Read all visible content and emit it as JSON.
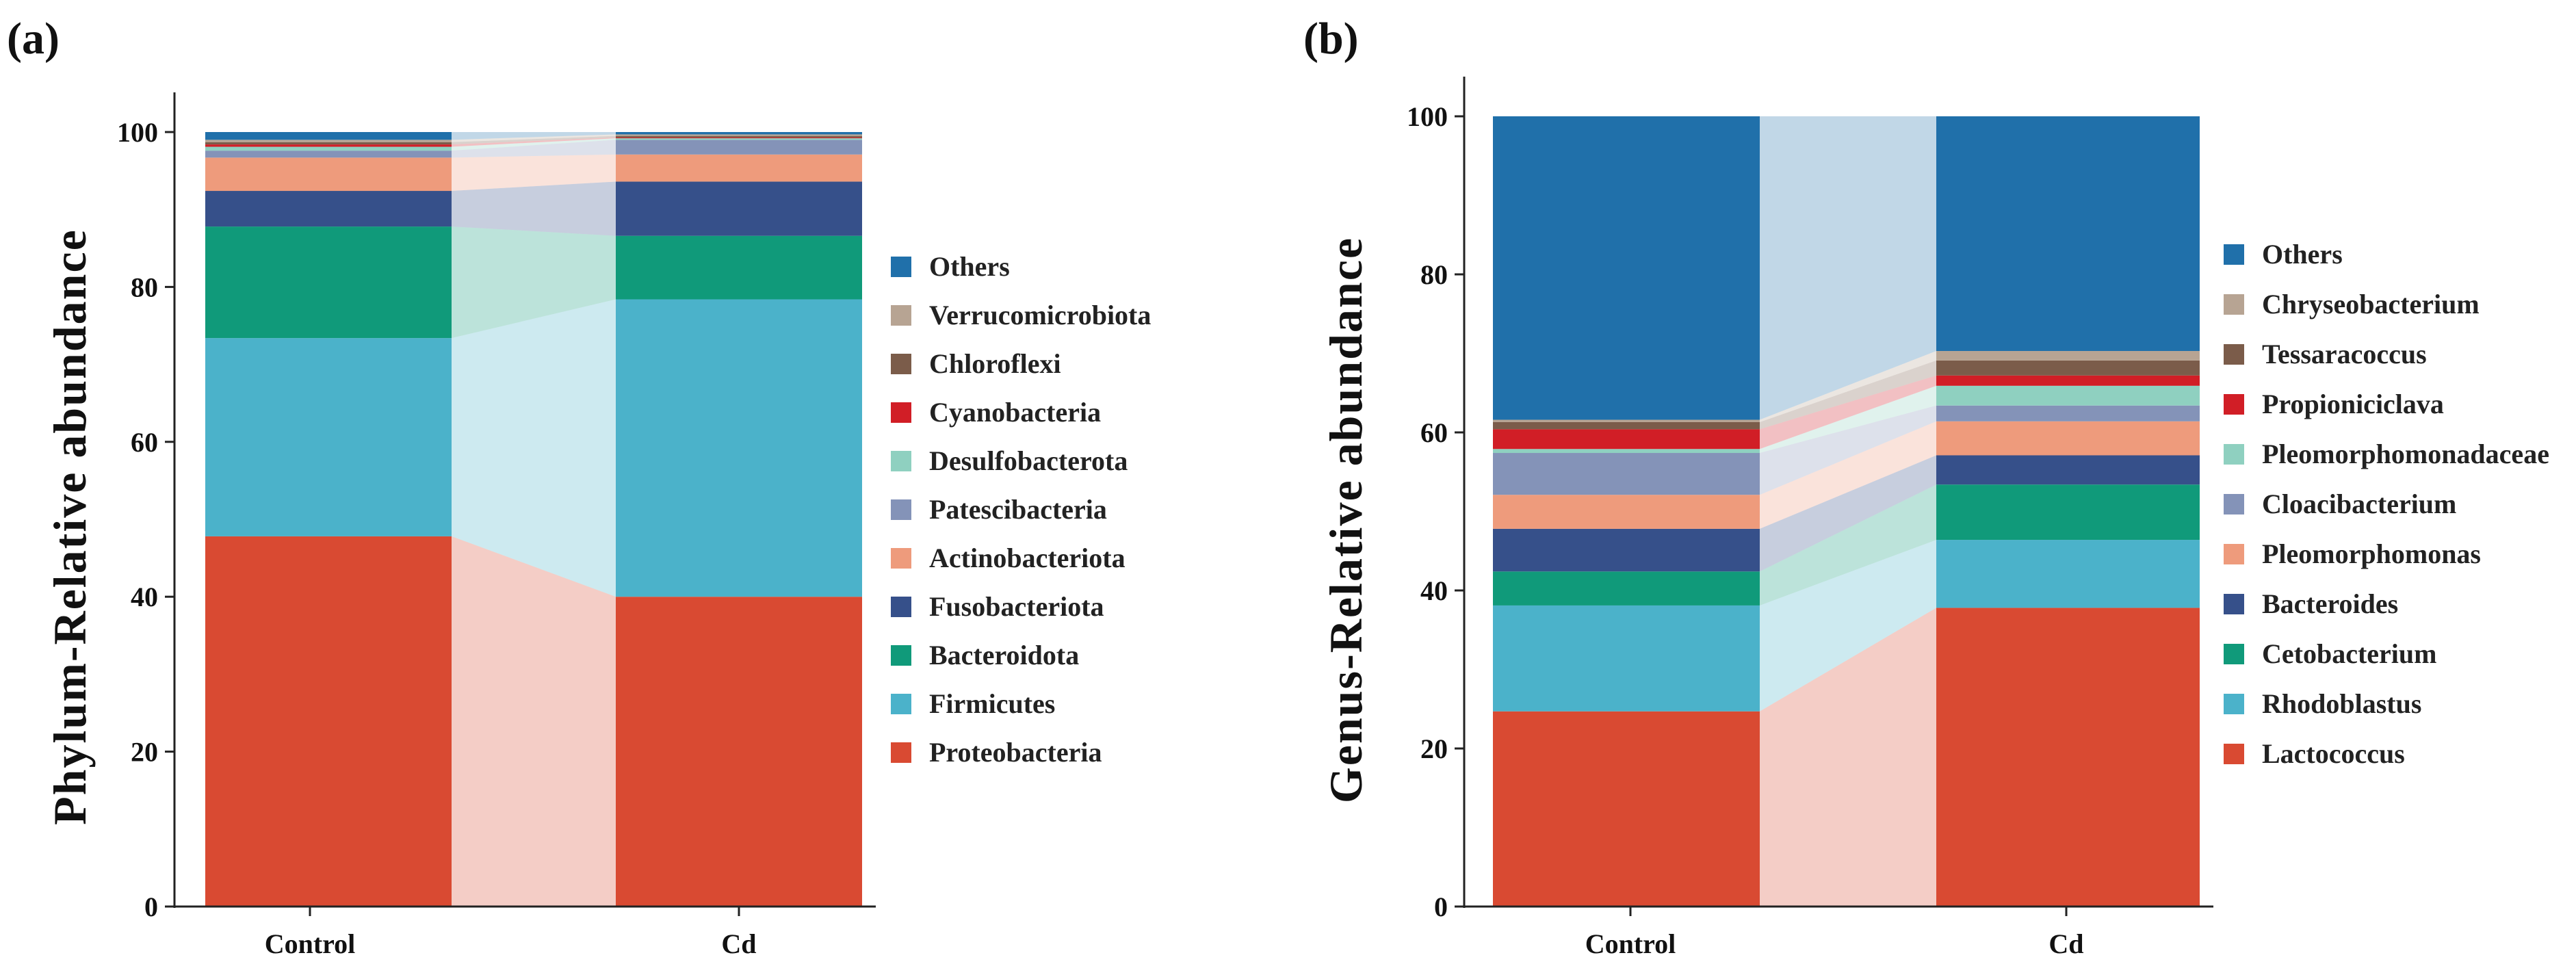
{
  "chart_data": [
    {
      "type": "stacked-bar",
      "panel_label": "(a)",
      "ylabel": "Phylum-Relative abundance",
      "xlabel": "",
      "ylim": [
        0,
        100
      ],
      "yticks": [
        0,
        20,
        40,
        60,
        80,
        100
      ],
      "categories": [
        "Control",
        "Cd"
      ],
      "legend_position": "right",
      "series": [
        {
          "name": "Proteobacteria",
          "color": "#D94A32",
          "values": [
            47.8,
            40.0
          ]
        },
        {
          "name": "Firmicutes",
          "color": "#4BB2CA",
          "values": [
            25.6,
            38.4
          ]
        },
        {
          "name": "Bacteroidota",
          "color": "#109A7A",
          "values": [
            14.4,
            8.2
          ]
        },
        {
          "name": "Fusobacteriota",
          "color": "#36508A",
          "values": [
            4.6,
            7.0
          ]
        },
        {
          "name": "Actinobacteriota",
          "color": "#EE9B7C",
          "values": [
            4.3,
            3.5
          ]
        },
        {
          "name": "Patescibacteria",
          "color": "#8493B8",
          "values": [
            0.9,
            1.9
          ]
        },
        {
          "name": "Desulfobacterota",
          "color": "#8FD0C0",
          "values": [
            0.5,
            0.2
          ]
        },
        {
          "name": "Cyanobacteria",
          "color": "#D11E26",
          "values": [
            0.3,
            0.1
          ]
        },
        {
          "name": "Chloroflexi",
          "color": "#7B5C4A",
          "values": [
            0.3,
            0.2
          ]
        },
        {
          "name": "Verrucomicrobiota",
          "color": "#B7A493",
          "values": [
            0.3,
            0.2
          ]
        },
        {
          "name": "Others",
          "color": "#2070AA",
          "values": [
            1.0,
            0.3
          ]
        }
      ]
    },
    {
      "type": "stacked-bar",
      "panel_label": "(b)",
      "ylabel": "Genus-Relative abundance",
      "xlabel": "",
      "ylim": [
        0,
        100
      ],
      "yticks": [
        0,
        20,
        40,
        60,
        80,
        100
      ],
      "categories": [
        "Control",
        "Cd"
      ],
      "legend_position": "right",
      "series": [
        {
          "name": "Lactococcus",
          "color": "#D94A32",
          "values": [
            24.7,
            37.8
          ]
        },
        {
          "name": "Rhodoblastus",
          "color": "#4BB2CA",
          "values": [
            13.4,
            8.6
          ]
        },
        {
          "name": "Cetobacterium",
          "color": "#109A7A",
          "values": [
            4.3,
            7.0
          ]
        },
        {
          "name": "Bacteroides",
          "color": "#36508A",
          "values": [
            5.4,
            3.7
          ]
        },
        {
          "name": "Pleomorphomonas",
          "color": "#EE9B7C",
          "values": [
            4.3,
            4.3
          ]
        },
        {
          "name": "Cloacibacterium",
          "color": "#8493B8",
          "values": [
            5.3,
            2.0
          ]
        },
        {
          "name": "Pleomorphomonadaceae",
          "color": "#8FD0C0",
          "values": [
            0.5,
            2.5
          ]
        },
        {
          "name": "Propioniciclava",
          "color": "#D11E26",
          "values": [
            2.5,
            1.3
          ]
        },
        {
          "name": "Tessaracoccus",
          "color": "#7B5C4A",
          "values": [
            0.9,
            1.9
          ]
        },
        {
          "name": "Chryseobacterium",
          "color": "#B7A493",
          "values": [
            0.3,
            1.2
          ]
        },
        {
          "name": "Others",
          "color": "#2070AA",
          "values": [
            38.4,
            29.7
          ]
        }
      ]
    }
  ]
}
